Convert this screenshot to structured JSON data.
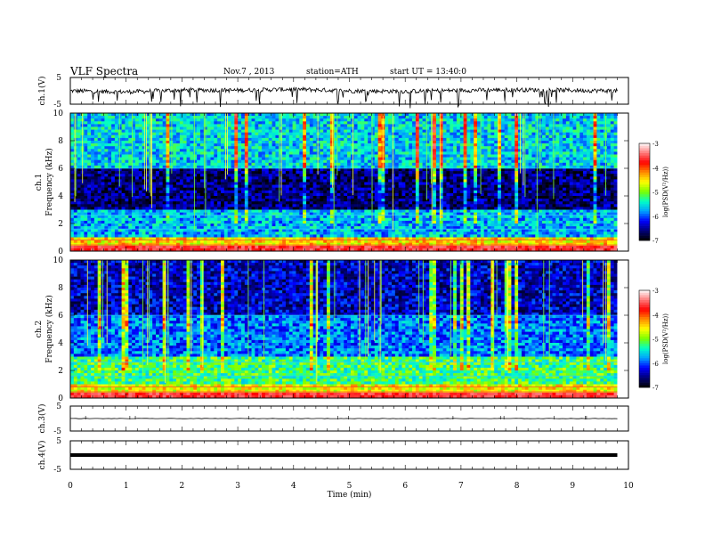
{
  "header": {
    "title": "VLF Spectra",
    "date": "Nov.7 , 2013",
    "station": "station=ATH",
    "start": "start UT =  13:40:0"
  },
  "chart_data": [
    {
      "type": "line",
      "ylabel": "ch.1(V)",
      "ylim": [
        -5,
        5
      ],
      "yticks": [
        "5",
        "-5"
      ],
      "x": [
        0,
        1,
        2,
        3,
        4,
        5,
        6,
        7,
        8,
        9,
        9.8
      ],
      "values": [
        0,
        -0.4,
        0.3,
        0.2,
        0.6,
        0,
        -0.2,
        0.2,
        0.4,
        0.2,
        0
      ],
      "style": "noisy waveform with frequent downward spikes"
    },
    {
      "type": "heatmap",
      "ylabel": "ch.1 Frequency (kHz)",
      "ylim": [
        0,
        10
      ],
      "yticks": [
        "0",
        "2",
        "4",
        "6",
        "8",
        "10"
      ],
      "xlim": [
        0,
        10
      ],
      "data_end_min": 9.8,
      "description_bands": [
        {
          "from_khz": 0,
          "to_khz": 1,
          "logpsd": -4.5
        },
        {
          "from_khz": 1,
          "to_khz": 3,
          "logpsd": -5.7
        },
        {
          "from_khz": 3,
          "to_khz": 6,
          "logpsd": -6.6
        },
        {
          "from_khz": 6,
          "to_khz": 10,
          "logpsd": -5.6
        }
      ],
      "colorbar": {
        "label": "log(PSD(V²/Hz))",
        "ticks": [
          "-3",
          "-4",
          "-5",
          "-6",
          "-7"
        ],
        "range": [
          -7,
          -3
        ]
      }
    },
    {
      "type": "heatmap",
      "ylabel": "ch.2 Frequency (kHz)",
      "ylim": [
        0,
        10
      ],
      "yticks": [
        "0",
        "2",
        "4",
        "6",
        "8",
        "10"
      ],
      "xlim": [
        0,
        10
      ],
      "data_end_min": 9.8,
      "description_bands": [
        {
          "from_khz": 0,
          "to_khz": 1,
          "logpsd": -4.6
        },
        {
          "from_khz": 1,
          "to_khz": 3,
          "logpsd": -5.2
        },
        {
          "from_khz": 3,
          "to_khz": 6,
          "logpsd": -5.9
        },
        {
          "from_khz": 6,
          "to_khz": 10,
          "logpsd": -6.4
        }
      ],
      "colorbar": {
        "label": "log(PSD(V²/Hz))",
        "ticks": [
          "-3",
          "-4",
          "-5",
          "-6",
          "-7"
        ],
        "range": [
          -7,
          -3
        ]
      }
    },
    {
      "type": "line",
      "ylabel": "ch.3(V)",
      "ylim": [
        -5,
        5
      ],
      "yticks": [
        "5",
        "-5"
      ],
      "x": [
        0,
        9.8
      ],
      "values": [
        0,
        0
      ]
    },
    {
      "type": "line",
      "ylabel": "ch.4(V)",
      "ylim": [
        -5,
        5
      ],
      "yticks": [
        "5",
        "-5"
      ],
      "x": [
        0,
        9.8
      ],
      "values": [
        0,
        0
      ],
      "style": "thick flat trace"
    }
  ],
  "x_axis": {
    "label": "Time (min)",
    "ticks": [
      "0",
      "1",
      "2",
      "3",
      "4",
      "5",
      "6",
      "7",
      "8",
      "9",
      "10"
    ]
  }
}
